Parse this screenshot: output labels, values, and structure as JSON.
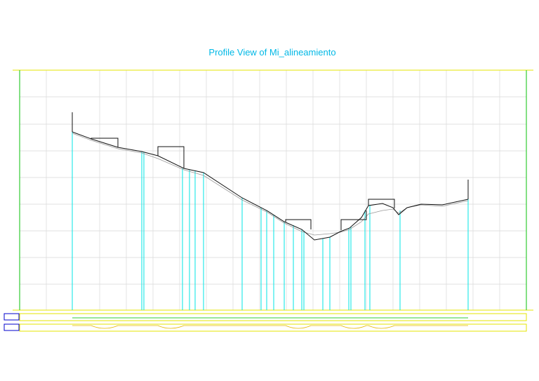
{
  "title": "Profile View of  Mi_alineamiento"
}
